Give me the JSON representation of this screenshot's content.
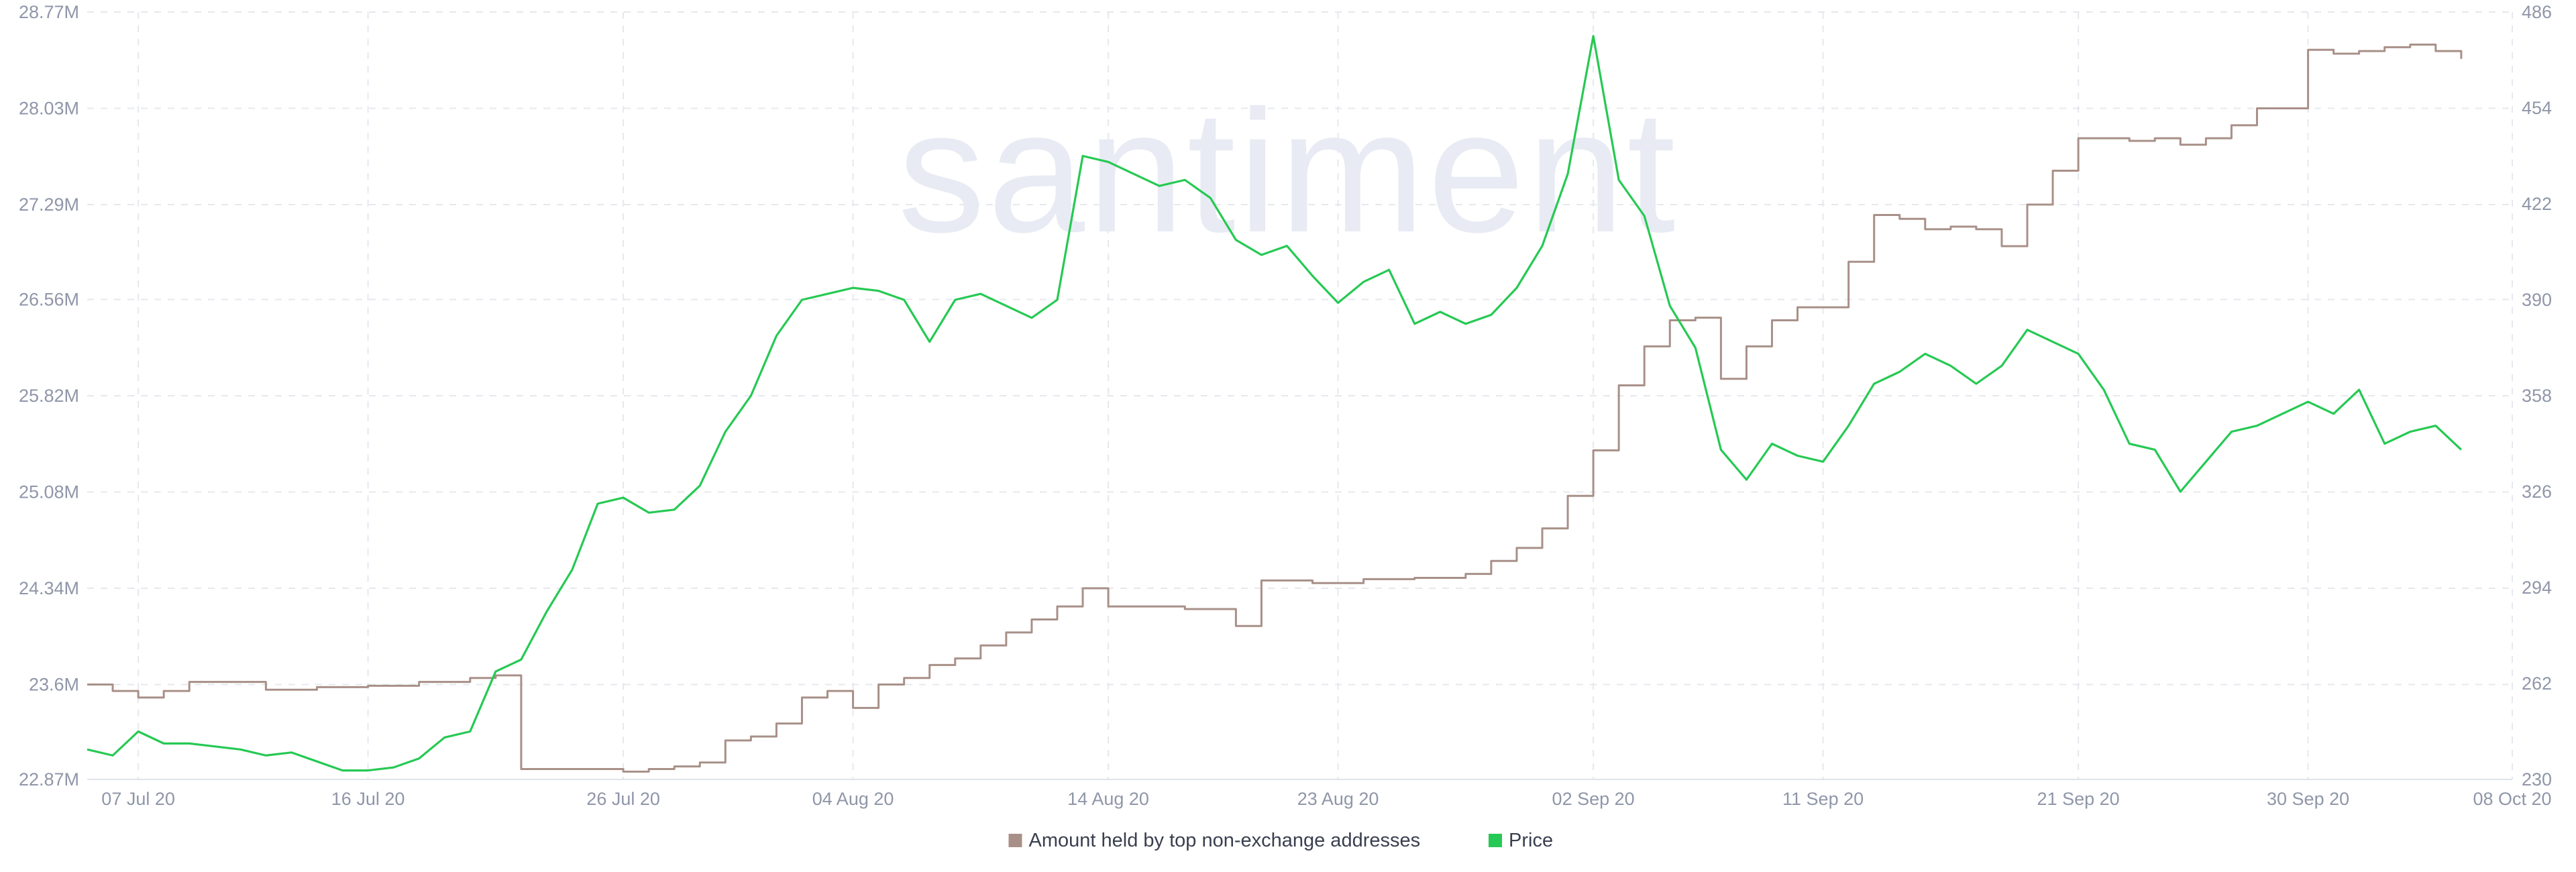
{
  "watermark": "santiment",
  "colors": {
    "amount": "#a89088",
    "price": "#26c953",
    "grid": "#e6e8ee",
    "tick": "#8f96a8"
  },
  "legend": {
    "placement": "bottom-center",
    "items": [
      {
        "label": "Amount held by top non-exchange addresses",
        "color": "#a89088"
      },
      {
        "label": "Price",
        "color": "#26c953"
      }
    ]
  },
  "chart_data": {
    "type": "line",
    "grid": true,
    "x_ticks": [
      {
        "date": "2020-07-07",
        "label": "07 Jul 20"
      },
      {
        "date": "2020-07-16",
        "label": "16 Jul 20"
      },
      {
        "date": "2020-07-26",
        "label": "26 Jul 20"
      },
      {
        "date": "2020-08-04",
        "label": "04 Aug 20"
      },
      {
        "date": "2020-08-14",
        "label": "14 Aug 20"
      },
      {
        "date": "2020-08-23",
        "label": "23 Aug 20"
      },
      {
        "date": "2020-09-02",
        "label": "02 Sep 20"
      },
      {
        "date": "2020-09-11",
        "label": "11 Sep 20"
      },
      {
        "date": "2020-09-21",
        "label": "21 Sep 20"
      },
      {
        "date": "2020-09-30",
        "label": "30 Sep 20"
      },
      {
        "date": "2020-10-08",
        "label": "08 Oct 20"
      }
    ],
    "xlim": [
      "2020-07-05",
      "2020-10-08"
    ],
    "y_left": {
      "ylim": [
        22.87,
        28.77
      ],
      "ticks": [
        "22.87M",
        "23.6M",
        "24.34M",
        "25.08M",
        "25.82M",
        "26.56M",
        "27.29M",
        "28.03M",
        "28.77M"
      ],
      "tick_values": [
        22.87,
        23.6,
        24.34,
        25.08,
        25.82,
        26.56,
        27.29,
        28.03,
        28.77
      ]
    },
    "y_right": {
      "ylim": [
        230,
        486
      ],
      "ticks": [
        "230",
        "262",
        "294",
        "326",
        "358",
        "390",
        "422",
        "454",
        "486"
      ],
      "tick_values": [
        230,
        262,
        294,
        326,
        358,
        390,
        422,
        454,
        486
      ]
    },
    "series": [
      {
        "name": "Amount held by top non-exchange addresses",
        "axis": "left",
        "unit": "M",
        "x": [
          "2020-07-05",
          "2020-07-06",
          "2020-07-07",
          "2020-07-08",
          "2020-07-09",
          "2020-07-10",
          "2020-07-12",
          "2020-07-14",
          "2020-07-16",
          "2020-07-18",
          "2020-07-20",
          "2020-07-21",
          "2020-07-22",
          "2020-07-22",
          "2020-07-24",
          "2020-07-26",
          "2020-07-27",
          "2020-07-28",
          "2020-07-29",
          "2020-07-30",
          "2020-07-31",
          "2020-08-01",
          "2020-08-02",
          "2020-08-03",
          "2020-08-04",
          "2020-08-05",
          "2020-08-06",
          "2020-08-07",
          "2020-08-08",
          "2020-08-09",
          "2020-08-10",
          "2020-08-11",
          "2020-08-12",
          "2020-08-13",
          "2020-08-14",
          "2020-08-15",
          "2020-08-17",
          "2020-08-19",
          "2020-08-20",
          "2020-08-22",
          "2020-08-24",
          "2020-08-26",
          "2020-08-28",
          "2020-08-29",
          "2020-08-30",
          "2020-08-31",
          "2020-09-01",
          "2020-09-02",
          "2020-09-03",
          "2020-09-04",
          "2020-09-05",
          "2020-09-06",
          "2020-09-07",
          "2020-09-08",
          "2020-09-09",
          "2020-09-10",
          "2020-09-12",
          "2020-09-13",
          "2020-09-14",
          "2020-09-15",
          "2020-09-16",
          "2020-09-17",
          "2020-09-18",
          "2020-09-19",
          "2020-09-20",
          "2020-09-21",
          "2020-09-23",
          "2020-09-24",
          "2020-09-25",
          "2020-09-26",
          "2020-09-27",
          "2020-09-28",
          "2020-09-30",
          "2020-10-01",
          "2020-10-02",
          "2020-10-03",
          "2020-10-04",
          "2020-10-05",
          "2020-10-06"
        ],
        "values": [
          23.6,
          23.55,
          23.5,
          23.55,
          23.62,
          23.62,
          23.56,
          23.58,
          23.59,
          23.62,
          23.65,
          23.67,
          23.66,
          22.95,
          22.95,
          22.93,
          22.95,
          22.97,
          23.0,
          23.17,
          23.2,
          23.3,
          23.5,
          23.55,
          23.42,
          23.6,
          23.65,
          23.75,
          23.8,
          23.9,
          24.0,
          24.1,
          24.2,
          24.34,
          24.2,
          24.2,
          24.18,
          24.05,
          24.4,
          24.38,
          24.41,
          24.42,
          24.45,
          24.55,
          24.65,
          24.8,
          25.05,
          25.4,
          25.9,
          26.2,
          26.4,
          26.42,
          25.95,
          26.2,
          26.4,
          26.5,
          26.85,
          27.21,
          27.18,
          27.1,
          27.12,
          27.1,
          26.97,
          27.29,
          27.55,
          27.8,
          27.78,
          27.8,
          27.75,
          27.8,
          27.9,
          28.03,
          28.48,
          28.45,
          28.47,
          28.5,
          28.52,
          28.47,
          28.41
        ]
      },
      {
        "name": "Price",
        "axis": "right",
        "unit": "USD",
        "x": [
          "2020-07-05",
          "2020-07-06",
          "2020-07-07",
          "2020-07-08",
          "2020-07-09",
          "2020-07-10",
          "2020-07-11",
          "2020-07-12",
          "2020-07-13",
          "2020-07-14",
          "2020-07-15",
          "2020-07-16",
          "2020-07-17",
          "2020-07-18",
          "2020-07-19",
          "2020-07-20",
          "2020-07-21",
          "2020-07-22",
          "2020-07-23",
          "2020-07-24",
          "2020-07-25",
          "2020-07-26",
          "2020-07-27",
          "2020-07-28",
          "2020-07-29",
          "2020-07-30",
          "2020-07-31",
          "2020-08-01",
          "2020-08-02",
          "2020-08-03",
          "2020-08-04",
          "2020-08-05",
          "2020-08-06",
          "2020-08-07",
          "2020-08-08",
          "2020-08-09",
          "2020-08-10",
          "2020-08-11",
          "2020-08-12",
          "2020-08-13",
          "2020-08-14",
          "2020-08-15",
          "2020-08-16",
          "2020-08-17",
          "2020-08-18",
          "2020-08-19",
          "2020-08-20",
          "2020-08-21",
          "2020-08-22",
          "2020-08-23",
          "2020-08-24",
          "2020-08-25",
          "2020-08-26",
          "2020-08-27",
          "2020-08-28",
          "2020-08-29",
          "2020-08-30",
          "2020-08-31",
          "2020-09-01",
          "2020-09-02",
          "2020-09-03",
          "2020-09-04",
          "2020-09-05",
          "2020-09-06",
          "2020-09-07",
          "2020-09-08",
          "2020-09-09",
          "2020-09-10",
          "2020-09-11",
          "2020-09-12",
          "2020-09-13",
          "2020-09-14",
          "2020-09-15",
          "2020-09-16",
          "2020-09-17",
          "2020-09-18",
          "2020-09-19",
          "2020-09-20",
          "2020-09-21",
          "2020-09-22",
          "2020-09-23",
          "2020-09-24",
          "2020-09-25",
          "2020-09-26",
          "2020-09-27",
          "2020-09-28",
          "2020-09-29",
          "2020-09-30",
          "2020-10-01",
          "2020-10-02",
          "2020-10-03",
          "2020-10-04",
          "2020-10-05",
          "2020-10-06"
        ],
        "values": [
          240,
          238,
          246,
          242,
          242,
          241,
          240,
          238,
          239,
          236,
          233,
          233,
          234,
          237,
          244,
          246,
          266,
          270,
          286,
          300,
          322,
          324,
          319,
          320,
          328,
          346,
          358,
          378,
          390,
          392,
          394,
          393,
          390,
          376,
          390,
          392,
          388,
          384,
          390,
          438,
          436,
          432,
          428,
          430,
          424,
          410,
          405,
          408,
          398,
          389,
          396,
          400,
          382,
          386,
          382,
          385,
          394,
          408,
          432,
          478,
          430,
          418,
          388,
          374,
          340,
          330,
          342,
          338,
          336,
          348,
          362,
          366,
          372,
          368,
          362,
          368,
          380,
          376,
          372,
          360,
          342,
          340,
          326,
          336,
          346,
          348,
          352,
          356,
          352,
          360,
          342,
          346,
          348,
          340
        ]
      }
    ]
  }
}
